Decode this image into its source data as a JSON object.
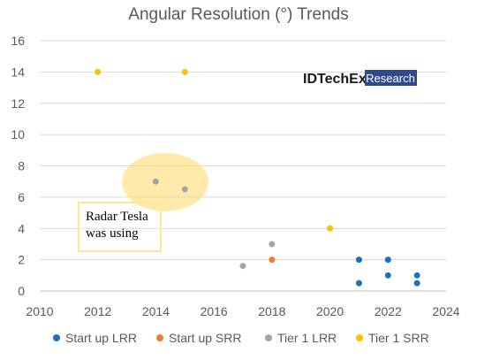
{
  "chart_data": {
    "type": "scatter",
    "title": "Angular Resolution (°) Trends",
    "xlabel": "",
    "ylabel": "",
    "xlim": [
      2010,
      2024
    ],
    "ylim": [
      0,
      16
    ],
    "x_ticks": [
      "2010",
      "2012",
      "2014",
      "2016",
      "2018",
      "2020",
      "2022",
      "2024"
    ],
    "y_ticks": [
      "0",
      "2",
      "4",
      "6",
      "8",
      "10",
      "12",
      "14",
      "16"
    ],
    "grid": "horizontal",
    "legend_position": "bottom",
    "series": [
      {
        "name": "Start up LRR",
        "color": "#1f6fbf",
        "points": [
          [
            2021,
            2
          ],
          [
            2021,
            0.5
          ],
          [
            2022,
            2
          ],
          [
            2022,
            1
          ],
          [
            2023,
            1
          ],
          [
            2023,
            0.5
          ]
        ]
      },
      {
        "name": "Start up SRR",
        "color": "#ed7d31",
        "points": [
          [
            2018,
            2
          ]
        ]
      },
      {
        "name": "Tier 1 LRR",
        "color": "#a5a5a5",
        "points": [
          [
            2014,
            7
          ],
          [
            2015,
            6.5
          ],
          [
            2017,
            1.6
          ],
          [
            2018,
            3
          ]
        ]
      },
      {
        "name": "Tier 1 SRR",
        "color": "#ffc000",
        "points": [
          [
            2012,
            14
          ],
          [
            2015,
            14
          ],
          [
            2020,
            4
          ]
        ]
      }
    ],
    "annotation": {
      "lines": [
        "Radar Tesla",
        "was using"
      ],
      "highlight_color": "#ffc000"
    },
    "logo": {
      "part1": "IDTechEx",
      "part2": "Research",
      "bg": "#2e4a8c"
    }
  }
}
